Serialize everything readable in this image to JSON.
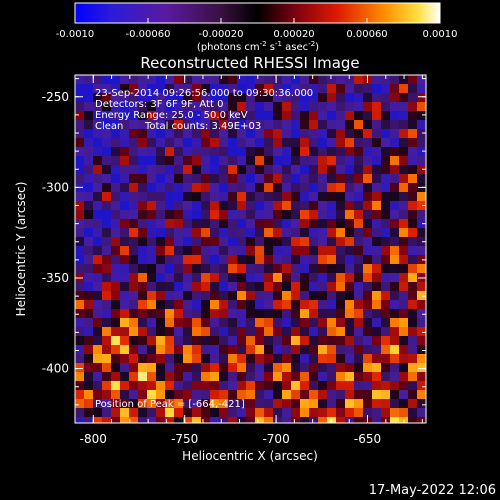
{
  "colorbar": {
    "tick_labels": [
      "-0.0010",
      "-0.00060",
      "-0.00020",
      "0.00020",
      "0.00060",
      "0.0010"
    ],
    "tick_values": [
      -0.001,
      -0.0006,
      -0.0002,
      0.0002,
      0.0006,
      0.001
    ],
    "range": [
      -0.001,
      0.001
    ],
    "unit_label_text": "(photons cm",
    "unit_sup1": "-2",
    "unit_mid": " s",
    "unit_sup2": "-1",
    "unit_tail": " asec",
    "unit_sup3": "-2",
    "unit_close": ")"
  },
  "image": {
    "title": "Reconstructed RHESSI Image",
    "annotations": {
      "time_range": "23-Sep-2014 09:26:56.000 to 09:30:36.000",
      "detectors": "Detectors: 3F 6F 9F, Att 0",
      "energy": "Energy Range: 25.0 - 50.0 keV",
      "method": "Clean",
      "total_counts": "Total counts: 3.49E+03",
      "peak": "Position of Peak = [-664,-421]"
    },
    "x_axis": {
      "label": "Heliocentric X (arcsec)",
      "tick_labels": [
        "-800",
        "-750",
        "-700",
        "-650"
      ],
      "tick_values": [
        -800,
        -750,
        -700,
        -650
      ],
      "range": [
        -810,
        -618
      ]
    },
    "y_axis": {
      "label": "Heliocentric Y (arcsec)",
      "tick_labels": [
        "-250",
        "-300",
        "-350",
        "-400"
      ],
      "tick_values": [
        -250,
        -300,
        -350,
        -400
      ],
      "range": [
        -430,
        -238
      ]
    }
  },
  "footer": {
    "timestamp": "17-May-2022 12:06"
  },
  "colors": {
    "background": "#000000",
    "text": "#ffffff"
  }
}
